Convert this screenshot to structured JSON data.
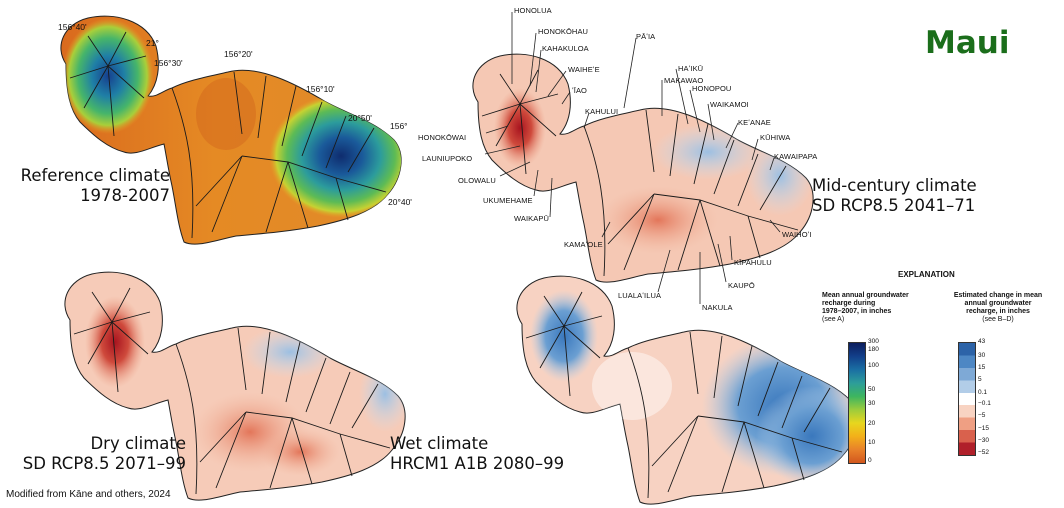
{
  "title": "Maui",
  "panels": {
    "reference": {
      "line1": "Reference climate",
      "line2": "1978-2007"
    },
    "mid_century": {
      "line1": "Mid-century climate",
      "line2": "SD RCP8.5 2041–71"
    },
    "dry": {
      "line1": "Dry climate",
      "line2": "SD RCP8.5 2071–99"
    },
    "wet": {
      "line1": "Wet climate",
      "line2": "HRCM1 A1B 2080–99"
    }
  },
  "coordinates": [
    "156°40'",
    "21°",
    "156°30'",
    "156°20'",
    "156°10'",
    "20°50'",
    "156°",
    "20°40'"
  ],
  "basins": [
    "HONOLUA",
    "HONOKŌHAU",
    "KAHAKULOA",
    "WAIHEʻE",
    "ʻĪAO",
    "KAHULUI",
    "HONOKŌWAI",
    "LAUNIUPOKO",
    "OLOWALU",
    "UKUMEHAME",
    "WAIKAPŪ",
    "PĀʻIA",
    "MAKAWAO",
    "HAʻIKŪ",
    "HONOPOU",
    "WAIKAMOI",
    "KEʻANAE",
    "KŪHIWA",
    "KAWAIPAPA",
    "KAMAʻOLE",
    "WAIHOʻI",
    "KĪPAHULU",
    "KAUPŌ",
    "LUALAʻILUA",
    "NAKULA"
  ],
  "explanation": {
    "title": "EXPLANATION",
    "legend_a": {
      "heading": [
        "Mean annual groundwater",
        "recharge during",
        "1978–2007, in inches",
        "(see A)"
      ],
      "ticks": [
        "300",
        "180",
        "100",
        "50",
        "30",
        "20",
        "10",
        "0"
      ],
      "colors": [
        "#0c1e5e",
        "#123f8a",
        "#1a6fa3",
        "#2d9d9a",
        "#3db55f",
        "#9ccc3c",
        "#e7d61e",
        "#f2b01a",
        "#e8812a",
        "#d2571e"
      ]
    },
    "legend_b": {
      "heading": [
        "Estimated change in mean",
        "annual groundwater",
        "recharge, in inches",
        "(see B–D)"
      ],
      "ticks": [
        "43",
        "30",
        "15",
        "5",
        "0.1",
        "−0.1",
        "−5",
        "−15",
        "−30",
        "−52"
      ],
      "colors": [
        "#2c63a8",
        "#4d87c4",
        "#7ea9d6",
        "#b2cde8",
        "#ffffff",
        "#f8d3c2",
        "#ef9f83",
        "#d9614d",
        "#b0202a"
      ]
    }
  },
  "credit": "Modified from Kāne and others, 2024"
}
